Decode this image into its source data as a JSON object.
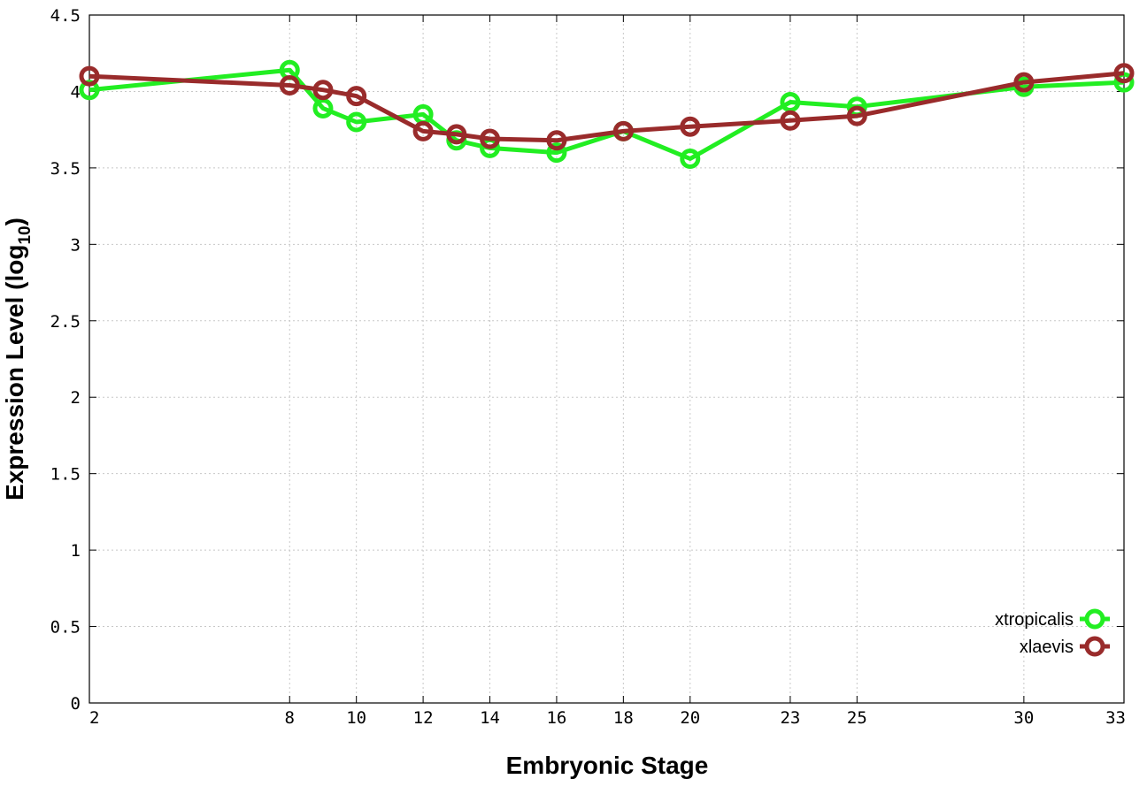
{
  "chart_data": {
    "type": "line",
    "xlabel": "Embryonic Stage",
    "ylabel": "Expression Level (log",
    "ylabel_sub": "10",
    "ylabel_suffix": ")",
    "ylim": [
      0,
      4.5
    ],
    "xlim": [
      2,
      33
    ],
    "yticks": [
      "0",
      "0.5",
      "1",
      "1.5",
      "2",
      "2.5",
      "3",
      "3.5",
      "4",
      "4.5"
    ],
    "xticks": [
      "2",
      "8",
      "10",
      "12",
      "14",
      "16",
      "18",
      "20",
      "23",
      "25",
      "30",
      "33"
    ],
    "grid": true,
    "legend_position": "bottom-right",
    "series": [
      {
        "name": "xtropicalis",
        "color": "#22ee22",
        "points": [
          [
            2,
            4.01
          ],
          [
            8,
            4.14
          ],
          [
            9,
            3.89
          ],
          [
            10,
            3.8
          ],
          [
            12,
            3.85
          ],
          [
            13,
            3.68
          ],
          [
            14,
            3.63
          ],
          [
            16,
            3.6
          ],
          [
            18,
            3.74
          ],
          [
            20,
            3.56
          ],
          [
            23,
            3.93
          ],
          [
            25,
            3.9
          ],
          [
            30,
            4.03
          ],
          [
            33,
            4.06
          ]
        ]
      },
      {
        "name": "xlaevis",
        "color": "#992b2b",
        "points": [
          [
            2,
            4.1
          ],
          [
            8,
            4.04
          ],
          [
            9,
            4.01
          ],
          [
            10,
            3.97
          ],
          [
            12,
            3.74
          ],
          [
            13,
            3.72
          ],
          [
            14,
            3.69
          ],
          [
            16,
            3.68
          ],
          [
            18,
            3.74
          ],
          [
            20,
            3.77
          ],
          [
            23,
            3.81
          ],
          [
            25,
            3.84
          ],
          [
            30,
            4.06
          ],
          [
            33,
            4.12
          ]
        ]
      }
    ]
  }
}
